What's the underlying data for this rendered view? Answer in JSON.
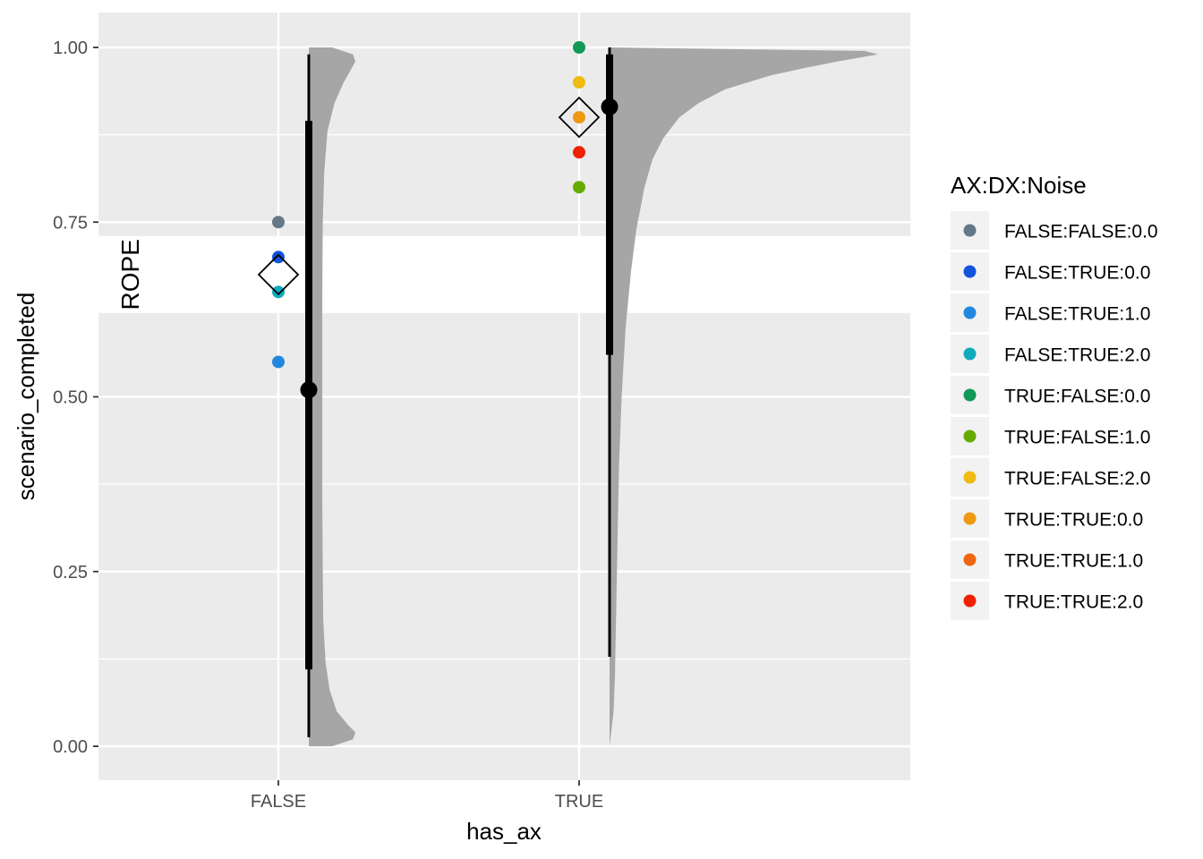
{
  "chart_data": {
    "type": "scatter",
    "subtype": "raincloud / half-eye with point-interval",
    "title": "",
    "xlabel": "has_ax",
    "ylabel": "scenario_completed",
    "categories": [
      "FALSE",
      "TRUE"
    ],
    "ylim": [
      -0.05,
      1.05
    ],
    "yticks": [
      0.0,
      0.25,
      0.5,
      0.75,
      1.0
    ],
    "ytick_labels": [
      "0.00",
      "0.25",
      "0.50",
      "0.75",
      "1.00"
    ],
    "grid": true,
    "legend": {
      "title": "AX:DX:Noise",
      "position": "right",
      "entries": [
        {
          "label": "FALSE:FALSE:0.0",
          "color": "#667788"
        },
        {
          "label": "FALSE:TRUE:0.0",
          "color": "#1155dd"
        },
        {
          "label": "FALSE:TRUE:1.0",
          "color": "#2288dd"
        },
        {
          "label": "FALSE:TRUE:2.0",
          "color": "#11aabb"
        },
        {
          "label": "TRUE:FALSE:0.0",
          "color": "#119955"
        },
        {
          "label": "TRUE:FALSE:1.0",
          "color": "#66aa00"
        },
        {
          "label": "TRUE:FALSE:2.0",
          "color": "#eebb11"
        },
        {
          "label": "TRUE:TRUE:0.0",
          "color": "#ee9911"
        },
        {
          "label": "TRUE:TRUE:1.0",
          "color": "#ee6611"
        },
        {
          "label": "TRUE:TRUE:2.0",
          "color": "#ee2200"
        }
      ]
    },
    "rope": {
      "label": "ROPE",
      "range": [
        0.62,
        0.73
      ]
    },
    "points": [
      {
        "group": "FALSE",
        "series": "FALSE:FALSE:0.0",
        "y": 0.75
      },
      {
        "group": "FALSE",
        "series": "FALSE:TRUE:0.0",
        "y": 0.7
      },
      {
        "group": "FALSE",
        "series": "FALSE:TRUE:2.0",
        "y": 0.65
      },
      {
        "group": "FALSE",
        "series": "FALSE:TRUE:1.0",
        "y": 0.55
      },
      {
        "group": "TRUE",
        "series": "TRUE:FALSE:0.0",
        "y": 1.0
      },
      {
        "group": "TRUE",
        "series": "TRUE:FALSE:2.0",
        "y": 0.95
      },
      {
        "group": "TRUE",
        "series": "TRUE:TRUE:0.0",
        "y": 0.9
      },
      {
        "group": "TRUE",
        "series": "TRUE:TRUE:2.0",
        "y": 0.85
      },
      {
        "group": "TRUE",
        "series": "TRUE:FALSE:1.0",
        "y": 0.8
      }
    ],
    "group_means": [
      {
        "group": "FALSE",
        "y": 0.675
      },
      {
        "group": "TRUE",
        "y": 0.9
      }
    ],
    "intervals": [
      {
        "group": "FALSE",
        "point": 0.51,
        "inner": [
          0.11,
          0.895
        ],
        "outer": [
          0.013,
          0.99
        ]
      },
      {
        "group": "TRUE",
        "point": 0.915,
        "inner": [
          0.56,
          0.99
        ],
        "outer": [
          0.128,
          1.0
        ]
      }
    ],
    "densities": [
      {
        "group": "FALSE",
        "color": "#a6a6a6",
        "y": [
          0.0,
          0.01,
          0.02,
          0.03,
          0.05,
          0.08,
          0.12,
          0.18,
          0.25,
          0.35,
          0.5,
          0.65,
          0.75,
          0.82,
          0.88,
          0.92,
          0.95,
          0.97,
          0.98,
          0.99,
          1.0
        ],
        "density": [
          0.5,
          0.95,
          1.0,
          0.85,
          0.6,
          0.45,
          0.36,
          0.31,
          0.3,
          0.29,
          0.29,
          0.29,
          0.3,
          0.33,
          0.4,
          0.55,
          0.75,
          0.92,
          1.0,
          0.95,
          0.5
        ]
      },
      {
        "group": "TRUE",
        "color": "#a6a6a6",
        "y": [
          0.0,
          0.05,
          0.1,
          0.2,
          0.3,
          0.4,
          0.5,
          0.6,
          0.68,
          0.74,
          0.8,
          0.84,
          0.87,
          0.9,
          0.92,
          0.94,
          0.96,
          0.97,
          0.98,
          0.99,
          0.995,
          1.0
        ],
        "density": [
          0.0,
          0.015,
          0.02,
          0.025,
          0.03,
          0.035,
          0.045,
          0.06,
          0.08,
          0.1,
          0.13,
          0.16,
          0.2,
          0.26,
          0.33,
          0.43,
          0.6,
          0.72,
          0.85,
          1.0,
          0.95,
          0.0
        ]
      }
    ]
  }
}
